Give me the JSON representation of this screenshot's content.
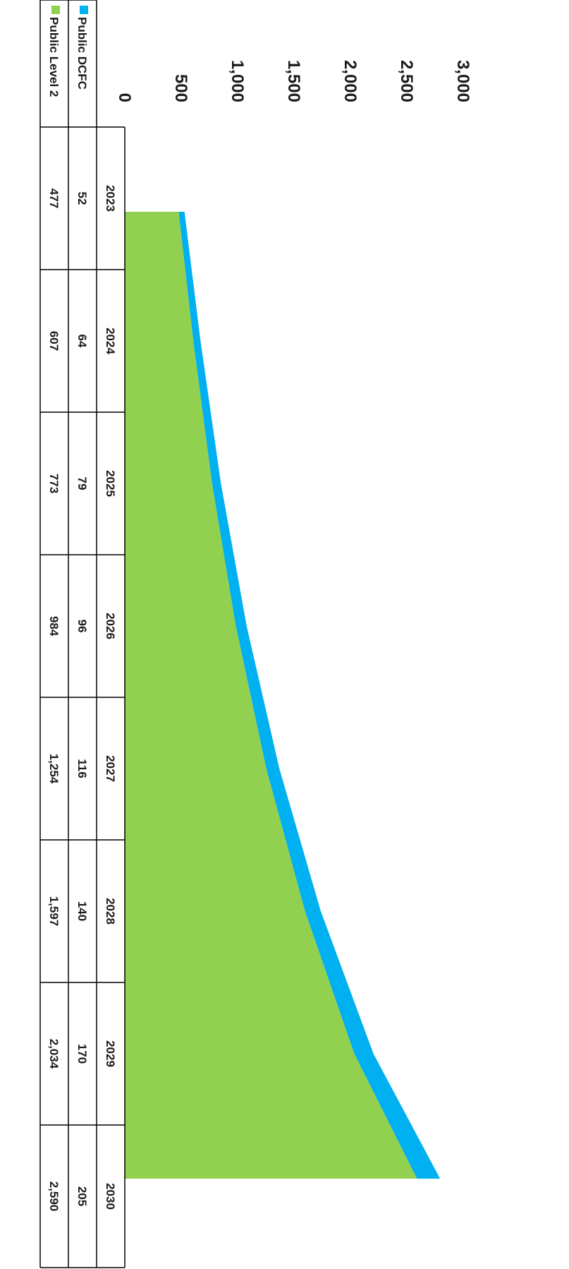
{
  "chart_data": {
    "type": "area",
    "stacked": true,
    "x": [
      "2023",
      "2024",
      "2025",
      "2026",
      "2027",
      "2028",
      "2029",
      "2030"
    ],
    "series": [
      {
        "name": "Public Level 2",
        "color": "#92d050",
        "values": [
          477,
          607,
          773,
          984,
          1254,
          1597,
          2034,
          2590
        ]
      },
      {
        "name": "Public DCFC",
        "color": "#00b0f0",
        "values": [
          52,
          64,
          79,
          96,
          116,
          140,
          170,
          205
        ]
      }
    ],
    "series_labels": [
      "Public Level 2",
      "Public DCFC"
    ],
    "ylim": [
      0,
      3000
    ],
    "yticks": [
      "0",
      "500",
      "1,000",
      "1,500",
      "2,000",
      "2,500",
      "3,000"
    ],
    "table": {
      "header": [
        "2023",
        "2024",
        "2025",
        "2026",
        "2027",
        "2028",
        "2029",
        "2030"
      ],
      "rows": [
        {
          "label": "Public DCFC",
          "color": "#00b0f0",
          "values": [
            "52",
            "64",
            "79",
            "96",
            "116",
            "140",
            "170",
            "205"
          ]
        },
        {
          "label": "Public Level 2",
          "color": "#92d050",
          "values": [
            "477",
            "607",
            "773",
            "984",
            "1,254",
            "1,597",
            "2,034",
            "2,590"
          ]
        }
      ]
    },
    "legend": {
      "position": "bottom",
      "items": [
        {
          "label": "Public Level 2",
          "color": "#92d050"
        },
        {
          "label": "Public DCFC",
          "color": "#00b0f0"
        }
      ]
    },
    "grid": false,
    "orientation": "rotated-90-clockwise"
  }
}
